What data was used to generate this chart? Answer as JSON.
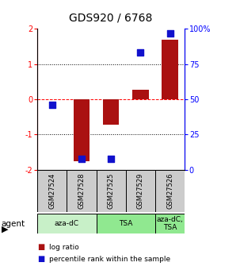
{
  "title": "GDS920 / 6768",
  "samples": [
    "GSM27524",
    "GSM27528",
    "GSM27525",
    "GSM27529",
    "GSM27526"
  ],
  "log_ratios": [
    0.0,
    -1.75,
    -0.72,
    0.28,
    1.7
  ],
  "percentile_ranks": [
    46,
    8,
    8,
    83,
    97
  ],
  "agent_groups": [
    {
      "label": "aza-dC",
      "span": [
        0,
        2
      ],
      "color": "#c8f0c8"
    },
    {
      "label": "TSA",
      "span": [
        2,
        4
      ],
      "color": "#90e890"
    },
    {
      "label": "aza-dC,\nTSA",
      "span": [
        4,
        5
      ],
      "color": "#90e890"
    }
  ],
  "bar_color_red": "#aa1111",
  "dot_color_blue": "#1111cc",
  "ylim_left": [
    -2,
    2
  ],
  "yticks_left": [
    -2,
    -1,
    0,
    1,
    2
  ],
  "ytick_labels_left": [
    "-2",
    "-1",
    "0",
    "1",
    "2"
  ],
  "yticks_right": [
    0,
    25,
    50,
    75,
    100
  ],
  "ytick_labels_right": [
    "0",
    "25",
    "50",
    "75",
    "100%"
  ],
  "bar_width": 0.55,
  "dot_size": 30,
  "sample_box_color": "#cccccc",
  "legend_labels": [
    "log ratio",
    "percentile rank within the sample"
  ],
  "legend_colors": [
    "#aa1111",
    "#1111cc"
  ]
}
